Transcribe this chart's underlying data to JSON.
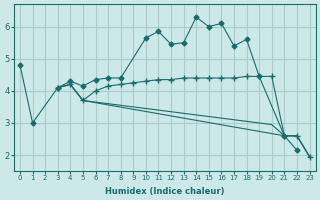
{
  "xlabel": "Humidex (Indice chaleur)",
  "bg_color": "#cce8e8",
  "grid_color": "#aacccc",
  "line_color": "#1a6b6b",
  "series": [
    {
      "x": [
        0,
        1,
        3,
        4,
        5,
        6,
        7,
        8,
        10,
        11,
        12,
        13,
        14,
        15,
        16,
        17,
        18,
        19,
        21,
        22
      ],
      "y": [
        4.8,
        3.0,
        4.1,
        4.3,
        4.15,
        4.35,
        4.4,
        4.4,
        5.65,
        5.85,
        5.45,
        5.5,
        6.3,
        6.0,
        6.1,
        5.4,
        5.6,
        4.45,
        2.6,
        2.15
      ],
      "marker": "D",
      "markersize": 2.5
    },
    {
      "x": [
        3,
        4,
        5,
        6,
        7,
        8,
        9,
        10,
        11,
        12,
        13,
        14,
        15,
        16,
        17,
        18,
        19,
        20,
        21,
        22,
        23
      ],
      "y": [
        4.1,
        4.2,
        3.7,
        4.0,
        4.15,
        4.2,
        4.25,
        4.3,
        4.35,
        4.35,
        4.4,
        4.4,
        4.4,
        4.4,
        4.4,
        4.45,
        4.45,
        4.45,
        2.6,
        2.6,
        1.95
      ],
      "marker": "+",
      "markersize": 4
    },
    {
      "x": [
        3,
        4,
        5,
        6,
        7,
        8,
        9,
        10,
        11,
        12,
        13,
        14,
        15,
        16,
        17,
        18,
        19,
        20,
        21,
        22,
        23
      ],
      "y": [
        4.1,
        4.2,
        3.7,
        3.65,
        3.6,
        3.55,
        3.5,
        3.45,
        3.4,
        3.35,
        3.3,
        3.25,
        3.2,
        3.15,
        3.1,
        3.05,
        3.0,
        2.95,
        2.6,
        2.6,
        1.95
      ],
      "marker": null,
      "markersize": 0
    },
    {
      "x": [
        3,
        4,
        5,
        21,
        22,
        23
      ],
      "y": [
        4.1,
        4.2,
        3.7,
        2.6,
        2.6,
        1.95
      ],
      "marker": null,
      "markersize": 0
    }
  ],
  "xlim": [
    -0.5,
    23.5
  ],
  "ylim": [
    1.5,
    6.7
  ],
  "yticks": [
    2,
    3,
    4,
    5,
    6
  ],
  "xticks": [
    0,
    1,
    2,
    3,
    4,
    5,
    6,
    7,
    8,
    9,
    10,
    11,
    12,
    13,
    14,
    15,
    16,
    17,
    18,
    19,
    20,
    21,
    22,
    23
  ]
}
